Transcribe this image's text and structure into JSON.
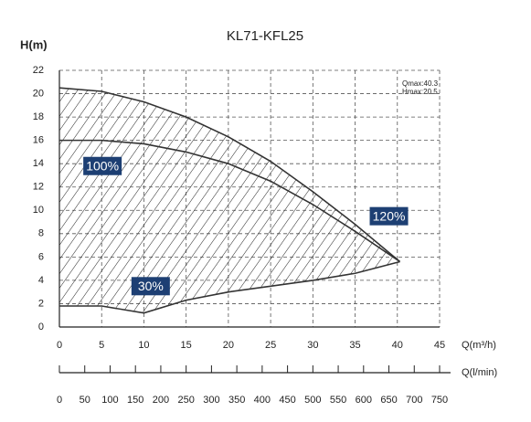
{
  "chart_data": {
    "type": "line",
    "title": "KL71-KFL25",
    "y_label": "H(m)",
    "x_label": "Q(m³/h)",
    "x2_label": "Q(l/min)",
    "annotations": [
      "Qmax:40.3",
      "Hmax:20.5"
    ],
    "x": [
      0,
      5,
      10,
      15,
      20,
      25,
      30,
      35,
      40.3
    ],
    "series": [
      {
        "name": "120%",
        "color": "#333333",
        "values": [
          20.5,
          20.2,
          19.3,
          18,
          16.3,
          14.2,
          11.6,
          8.8,
          5.6
        ]
      },
      {
        "name": "100%",
        "color": "#333333",
        "values": [
          16,
          16,
          15.7,
          15,
          14,
          12.5,
          10.5,
          8.2,
          5.6
        ]
      },
      {
        "name": "30%",
        "color": "#333333",
        "values": [
          1.8,
          1.8,
          1.2,
          2.3,
          3,
          3.5,
          4,
          4.6,
          5.6
        ]
      }
    ],
    "label_color": "#1d3f73",
    "xlim": [
      0,
      45
    ],
    "xticks": [
      0,
      5,
      10,
      15,
      20,
      25,
      30,
      35,
      40,
      45
    ],
    "ylim": [
      0,
      22
    ],
    "yticks": [
      0,
      2,
      4,
      6,
      8,
      10,
      12,
      14,
      16,
      18,
      20,
      22
    ],
    "x2lim": [
      0,
      750
    ],
    "x2ticks": [
      0,
      50,
      100,
      150,
      200,
      250,
      300,
      350,
      400,
      450,
      500,
      550,
      600,
      650,
      700,
      750
    ],
    "grid": true
  }
}
